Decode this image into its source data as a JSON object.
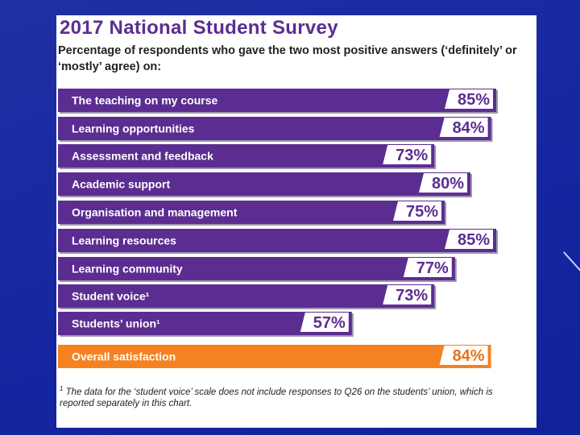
{
  "header": {
    "title": "2017 National Student Survey",
    "subtitle": "Percentage of respondents who gave the two most positive answers (‘definitely’ or ‘mostly’ agree) on:"
  },
  "footnote": {
    "marker": "1",
    "text": "The data for the ‘student voice’ scale does not include responses to Q26 on the students’ union, which is reported separately in this chart."
  },
  "colors": {
    "bar": "#5c2d91",
    "overall": "#f58220",
    "value_text": "#5c2d91",
    "overall_value_text": "#e8731a",
    "label_text": "#ffffff"
  },
  "chart_data": {
    "type": "bar",
    "orientation": "horizontal",
    "title": "2017 National Student Survey",
    "subtitle": "Percentage of respondents who gave the two most positive answers (‘definitely’ or ‘mostly’ agree) on:",
    "xlabel": "",
    "ylabel": "",
    "xlim": [
      0,
      100
    ],
    "unit": "%",
    "categories": [
      "The teaching on my course",
      "Learning opportunities",
      "Assessment and feedback",
      "Academic support",
      "Organisation and management",
      "Learning resources",
      "Learning community",
      "Student voice¹",
      "Students’ union¹",
      "Overall satisfaction"
    ],
    "values": [
      85,
      84,
      73,
      80,
      75,
      85,
      77,
      73,
      57,
      84
    ],
    "value_labels": [
      "85%",
      "84%",
      "73%",
      "80%",
      "75%",
      "85%",
      "77%",
      "73%",
      "57%",
      "84%"
    ],
    "highlight": [
      false,
      false,
      false,
      false,
      false,
      false,
      false,
      false,
      false,
      true
    ]
  }
}
